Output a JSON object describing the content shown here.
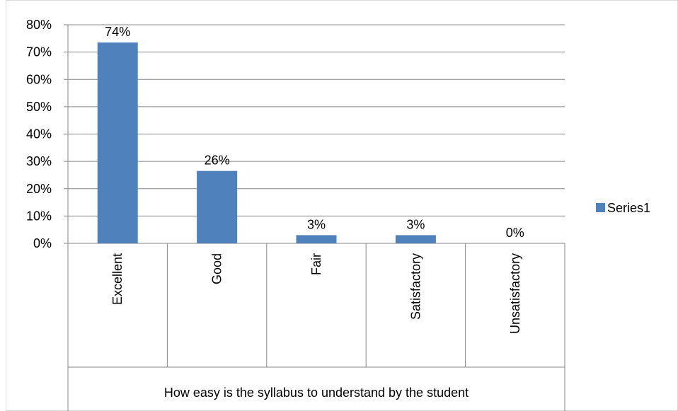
{
  "chart_data": {
    "type": "bar",
    "categories": [
      "Excellent",
      "Good",
      "Fair",
      "Satisfactory",
      "Unsatisfactory"
    ],
    "series": [
      {
        "name": "Series1",
        "values": [
          0.735,
          0.265,
          0.03,
          0.03,
          0
        ],
        "data_labels": [
          "74%",
          "26%",
          "3%",
          "3%",
          "0%"
        ],
        "color": "#4F81BD"
      }
    ],
    "y_ticks": [
      "0%",
      "10%",
      "20%",
      "30%",
      "40%",
      "50%",
      "60%",
      "70%",
      "80%"
    ],
    "ylim": [
      0,
      0.8
    ],
    "xlabel": "How easy is the syllabus to understand by the student",
    "grid": true,
    "legend_position": "right"
  }
}
